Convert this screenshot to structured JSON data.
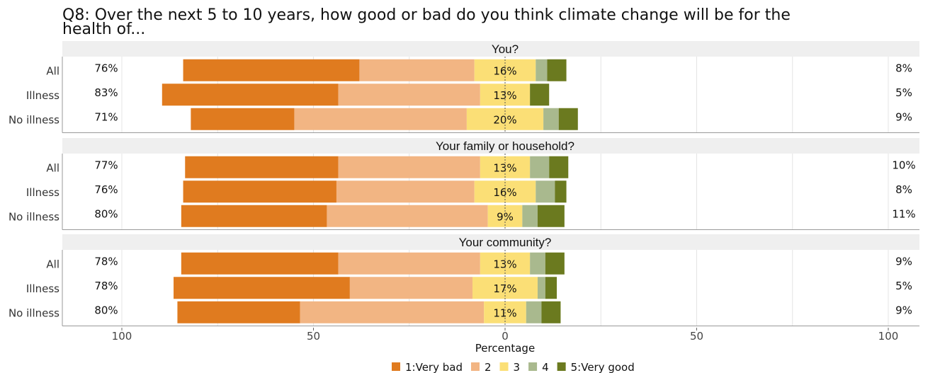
{
  "chart_data": {
    "type": "bar",
    "subtype": "diverging-stacked-likert",
    "title_lines": [
      "Q8: Over the next 5 to 10 years, how good or bad do you think climate change will be for the",
      "health of..."
    ],
    "xlabel": "Percentage",
    "xlim": [
      -100,
      100
    ],
    "x_ticks": [
      -100,
      -50,
      0,
      50,
      100
    ],
    "x_tick_labels": [
      "100",
      "50",
      "0",
      "50",
      "100"
    ],
    "grid": true,
    "legend_position": "bottom",
    "colors": {
      "very_bad": "#e07b1f",
      "bad": "#f2b583",
      "neutral": "#fbdf76",
      "good": "#a9b98e",
      "very_good": "#6b7a1f"
    },
    "legend": [
      {
        "key": "very_bad",
        "label": "1:Very bad"
      },
      {
        "key": "bad",
        "label": "2"
      },
      {
        "key": "neutral",
        "label": "3"
      },
      {
        "key": "good",
        "label": "4"
      },
      {
        "key": "very_good",
        "label": "5:Very good"
      }
    ],
    "panels": [
      {
        "label": "You?",
        "rows": [
          {
            "label": "All",
            "very_bad": 46,
            "bad": 30,
            "neutral": 16,
            "good": 3,
            "very_good": 5,
            "neg_label": "76%",
            "neutral_label": "16%",
            "pos_label": "8%"
          },
          {
            "label": "Illness",
            "very_bad": 46,
            "bad": 37,
            "neutral": 13,
            "good": 0,
            "very_good": 5,
            "neg_label": "83%",
            "neutral_label": "13%",
            "pos_label": "5%"
          },
          {
            "label": "No illness",
            "very_bad": 27,
            "bad": 45,
            "neutral": 20,
            "good": 4,
            "very_good": 5,
            "neg_label": "71%",
            "neutral_label": "20%",
            "pos_label": "9%"
          }
        ]
      },
      {
        "label": "Your family or household?",
        "rows": [
          {
            "label": "All",
            "very_bad": 40,
            "bad": 37,
            "neutral": 13,
            "good": 5,
            "very_good": 5,
            "neg_label": "77%",
            "neutral_label": "13%",
            "pos_label": "10%"
          },
          {
            "label": "Illness",
            "very_bad": 40,
            "bad": 36,
            "neutral": 16,
            "good": 5,
            "very_good": 3,
            "neg_label": "76%",
            "neutral_label": "16%",
            "pos_label": "8%"
          },
          {
            "label": "No illness",
            "very_bad": 38,
            "bad": 42,
            "neutral": 9,
            "good": 4,
            "very_good": 7,
            "neg_label": "80%",
            "neutral_label": "9%",
            "pos_label": "11%"
          }
        ]
      },
      {
        "label": "Your community?",
        "rows": [
          {
            "label": "All",
            "very_bad": 41,
            "bad": 37,
            "neutral": 13,
            "good": 4,
            "very_good": 5,
            "neg_label": "78%",
            "neutral_label": "13%",
            "pos_label": "9%"
          },
          {
            "label": "Illness",
            "very_bad": 46,
            "bad": 32,
            "neutral": 17,
            "good": 2,
            "very_good": 3,
            "neg_label": "78%",
            "neutral_label": "17%",
            "pos_label": "5%"
          },
          {
            "label": "No illness",
            "very_bad": 32,
            "bad": 48,
            "neutral": 11,
            "good": 4,
            "very_good": 5,
            "neg_label": "80%",
            "neutral_label": "11%",
            "pos_label": "9%"
          }
        ]
      }
    ]
  }
}
